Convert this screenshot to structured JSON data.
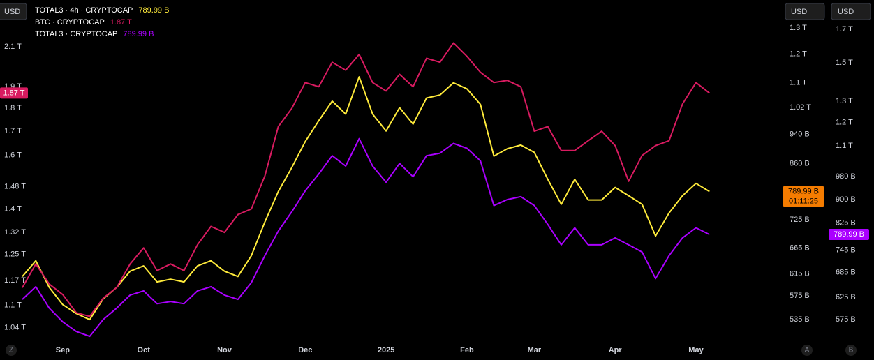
{
  "chart_data": {
    "type": "line",
    "currency_buttons": [
      "USD",
      "USD",
      "USD"
    ],
    "scale_buttons": [
      "Z",
      "A",
      "B"
    ],
    "countdown": "01:11:25",
    "log_scale": true,
    "x": [
      null,
      null,
      null,
      "Sep",
      null,
      null,
      null,
      null,
      null,
      "Oct",
      null,
      null,
      null,
      null,
      null,
      "Nov",
      null,
      null,
      null,
      null,
      null,
      "Dec",
      null,
      null,
      null,
      null,
      null,
      "2025",
      null,
      null,
      null,
      null,
      null,
      "Feb",
      null,
      null,
      null,
      null,
      "Mar",
      null,
      null,
      null,
      null,
      null,
      "Apr",
      null,
      null,
      null,
      null,
      null,
      "May",
      null
    ],
    "ylim": [
      1.004,
      2.36
    ],
    "yticks": [
      {
        "value": 2.1,
        "label": "2.1 T"
      },
      {
        "value": 1.9,
        "label": "1.9 T"
      },
      {
        "value": 1.8,
        "label": "1.8 T"
      },
      {
        "value": 1.7,
        "label": "1.7 T"
      },
      {
        "value": 1.6,
        "label": "1.6 T"
      },
      {
        "value": 1.48,
        "label": "1.48 T"
      },
      {
        "value": 1.4,
        "label": "1.4 T"
      },
      {
        "value": 1.32,
        "label": "1.32 T"
      },
      {
        "value": 1.25,
        "label": "1.25 T"
      },
      {
        "value": 1.17,
        "label": "1.17 T"
      },
      {
        "value": 1.1,
        "label": "1.1 T"
      },
      {
        "value": 1.04,
        "label": "1.04 T"
      }
    ],
    "y2lim": [
      500,
      1415
    ],
    "y2ticks": [
      {
        "value": 1300,
        "label": "1.3 T"
      },
      {
        "value": 1200,
        "label": "1.2 T"
      },
      {
        "value": 1100,
        "label": "1.1 T"
      },
      {
        "value": 1020,
        "label": "1.02 T"
      },
      {
        "value": 940,
        "label": "940 B"
      },
      {
        "value": 860,
        "label": "860 B"
      },
      {
        "value": 725,
        "label": "725 B"
      },
      {
        "value": 665,
        "label": "665 B"
      },
      {
        "value": 615,
        "label": "615 B"
      },
      {
        "value": 575,
        "label": "575 B"
      },
      {
        "value": 535,
        "label": "535 B"
      }
    ],
    "y3lim": [
      529,
      1896
    ],
    "y3ticks": [
      {
        "value": 1700,
        "label": "1.7 T"
      },
      {
        "value": 1500,
        "label": "1.5 T"
      },
      {
        "value": 1300,
        "label": "1.3 T"
      },
      {
        "value": 1200,
        "label": "1.2 T"
      },
      {
        "value": 1100,
        "label": "1.1 T"
      },
      {
        "value": 980,
        "label": "980 B"
      },
      {
        "value": 900,
        "label": "900 B"
      },
      {
        "value": 825,
        "label": "825 B"
      },
      {
        "value": 745,
        "label": "745 B"
      },
      {
        "value": 685,
        "label": "685 B"
      },
      {
        "value": 625,
        "label": "625 B"
      },
      {
        "value": 575,
        "label": "575 B"
      }
    ],
    "series": [
      {
        "name": "TOTAL3 · 4h · CRYPTOCAP",
        "color": "#ffeb3b",
        "axis": "y2",
        "last": {
          "value": 789.99,
          "label": "789.99 B"
        },
        "values": [
          610,
          640,
          590,
          560,
          545,
          535,
          570,
          590,
          620,
          630,
          600,
          605,
          600,
          630,
          640,
          620,
          610,
          650,
          720,
          790,
          850,
          920,
          980,
          1040,
          1000,
          1120,
          1000,
          950,
          1020,
          970,
          1050,
          1060,
          1100,
          1080,
          1030,
          880,
          900,
          910,
          890,
          820,
          760,
          820,
          770,
          770,
          800,
          780,
          760,
          690,
          740,
          780,
          810,
          789.99
        ]
      },
      {
        "name": "BTC · CRYPTOCAP",
        "color": "#d81b60",
        "axis": "y",
        "last": {
          "value": 1.87,
          "label": "1.87 T"
        },
        "values": [
          1.15,
          1.22,
          1.16,
          1.13,
          1.08,
          1.07,
          1.12,
          1.15,
          1.22,
          1.27,
          1.2,
          1.22,
          1.2,
          1.28,
          1.34,
          1.32,
          1.38,
          1.4,
          1.52,
          1.72,
          1.8,
          1.92,
          1.9,
          2.02,
          1.98,
          2.06,
          1.92,
          1.88,
          1.96,
          1.9,
          2.04,
          2.02,
          2.12,
          2.05,
          1.97,
          1.92,
          1.93,
          1.9,
          1.7,
          1.72,
          1.62,
          1.62,
          1.66,
          1.7,
          1.64,
          1.5,
          1.6,
          1.64,
          1.66,
          1.82,
          1.92,
          1.87
        ]
      },
      {
        "name": "TOTAL3 · CRYPTOCAP",
        "color": "#aa00ff",
        "axis": "y3",
        "last": {
          "value": 789.99,
          "label": "789.99 B"
        },
        "values": [
          620,
          650,
          600,
          570,
          550,
          540,
          575,
          600,
          630,
          640,
          610,
          615,
          610,
          640,
          650,
          630,
          620,
          660,
          730,
          800,
          860,
          930,
          990,
          1060,
          1020,
          1130,
          1020,
          960,
          1030,
          980,
          1060,
          1070,
          1110,
          1090,
          1040,
          880,
          900,
          910,
          880,
          820,
          760,
          810,
          760,
          760,
          780,
          760,
          740,
          670,
          730,
          780,
          810,
          789.99
        ]
      }
    ]
  }
}
